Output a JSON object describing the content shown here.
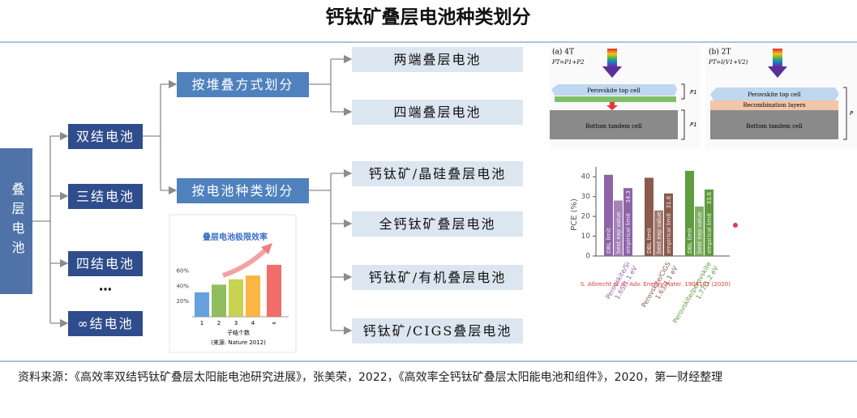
{
  "title": "钙钛矿叠层电池种类划分",
  "tree": {
    "root": "叠层电池",
    "junctions": [
      "双结电池",
      "三结电池",
      "四结电池",
      "…",
      "∞结电池"
    ],
    "methods": [
      "按堆叠方式划分",
      "按电池种类划分"
    ],
    "stacking_leaves": [
      "两端叠层电池",
      "四端叠层电池"
    ],
    "type_leaves": [
      "钙钛矿/晶硅叠层电池",
      "全钙钛矿叠层电池",
      "钙钛矿/有机叠层电池",
      "钙钛矿/CIGS叠层电池"
    ]
  },
  "limit_chart": {
    "type": "bar",
    "title": "叠层电池极限效率",
    "categories": [
      "1",
      "2",
      "3",
      "4",
      "∞"
    ],
    "values": [
      32,
      42,
      49,
      54,
      68
    ],
    "ylim": [
      0,
      70
    ],
    "yticks": [
      {
        "value": 20,
        "label": "20%"
      },
      {
        "value": 40,
        "label": "40%"
      },
      {
        "value": 60,
        "label": "60%"
      }
    ],
    "xlabel": "子结个数",
    "note": "(来源: Nature 2012)"
  },
  "schematic": {
    "a": {
      "label": "(a) 4T",
      "formula": "PT=P1+P2",
      "top": "Perovskite top cell",
      "bottom": "Bottom tandem cell",
      "p1": "P1",
      "p2": "P1"
    },
    "b": {
      "label": "(b) 2T",
      "formula": "PT=I(V1+V2)",
      "top": "Perovskite top cell",
      "middle": "Recombination layers",
      "bottom": "Bottom tandem cell",
      "p": "P"
    }
  },
  "pce_chart": {
    "type": "bar",
    "ylabel": "PCE (%)",
    "ylim": [
      0,
      45
    ],
    "yticks": [
      0,
      10,
      20,
      30,
      40
    ],
    "categories": [
      [
        "Perovskite/Si",
        "1.65/1.1 eV"
      ],
      [
        "Perovskite/CIGS",
        "1.63/1.1 eV"
      ],
      [
        "Perovskite/perovskite",
        "1.77/1.2 eV"
      ]
    ],
    "colors": [
      "#8e63a8",
      "#8a5a4c",
      "#5f9b3f"
    ],
    "series": [
      {
        "name": "DBL limit",
        "values": [
          41,
          39.5,
          43
        ]
      },
      {
        "name": "best exp value",
        "values": [
          28,
          23,
          25
        ]
      },
      {
        "name": "empirical limit",
        "values": [
          34.3,
          31.6,
          33.6
        ]
      }
    ],
    "source": "S. Albrecht et al. Adv. Energy Mater. 1904102 (2020)"
  },
  "source": "资料来源：《高效率双结钙钛矿叠层太阳能电池研究进展》，张美荣，2022，《高效率全钙钛矿叠层太阳能电池和组件》，2020，第一财经整理"
}
